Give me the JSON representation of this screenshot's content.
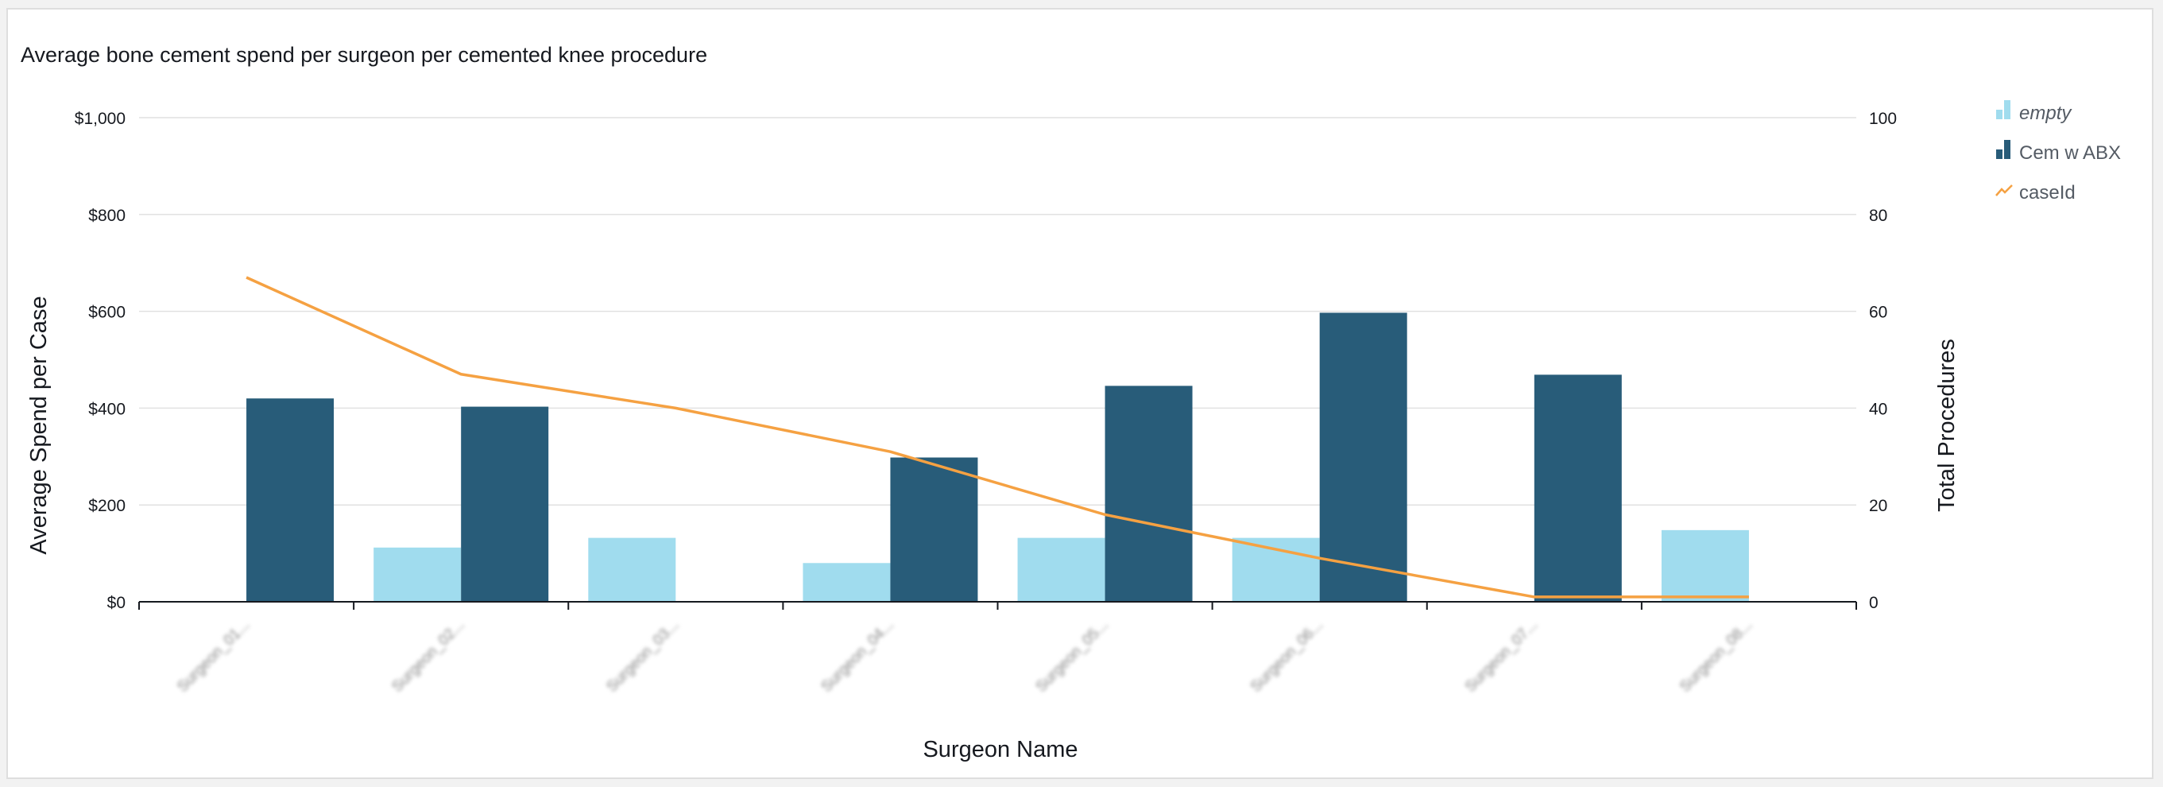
{
  "chart_data": {
    "type": "bar",
    "title": "Average bone cement spend per surgeon per cemented knee procedure",
    "xlabel": "Surgeon Name",
    "ylabel": "Average Spend per Case",
    "y2label": "Total Procedures",
    "categories": [
      "Surgeon_01...",
      "Surgeon_02...",
      "Surgeon_03...",
      "Surgeon_04...",
      "Surgeon_05...",
      "Surgeon_06...",
      "Surgeon_07...",
      "Surgeon_08..."
    ],
    "category_labels_blurred": true,
    "ylim": [
      0,
      1000
    ],
    "y_ticks": [
      "$0",
      "$200",
      "$400",
      "$600",
      "$800",
      "$1,000"
    ],
    "y2lim": [
      0,
      100
    ],
    "y2_ticks": [
      "0",
      "20",
      "40",
      "60",
      "80",
      "100"
    ],
    "grid": true,
    "legend_position": "top-right",
    "series": [
      {
        "name": "empty",
        "kind": "bar",
        "axis": "left",
        "color": "#a0dcee",
        "values": [
          0,
          112,
          132,
          80,
          132,
          132,
          0,
          148
        ]
      },
      {
        "name": "Cem w ABX",
        "kind": "bar",
        "axis": "left",
        "color": "#285c79",
        "values": [
          420,
          403,
          0,
          298,
          446,
          597,
          469,
          0
        ]
      },
      {
        "name": "caseId",
        "kind": "line",
        "axis": "right",
        "color": "#f5a142",
        "values": [
          67,
          47,
          40,
          31,
          18,
          9,
          1,
          1
        ]
      }
    ]
  }
}
